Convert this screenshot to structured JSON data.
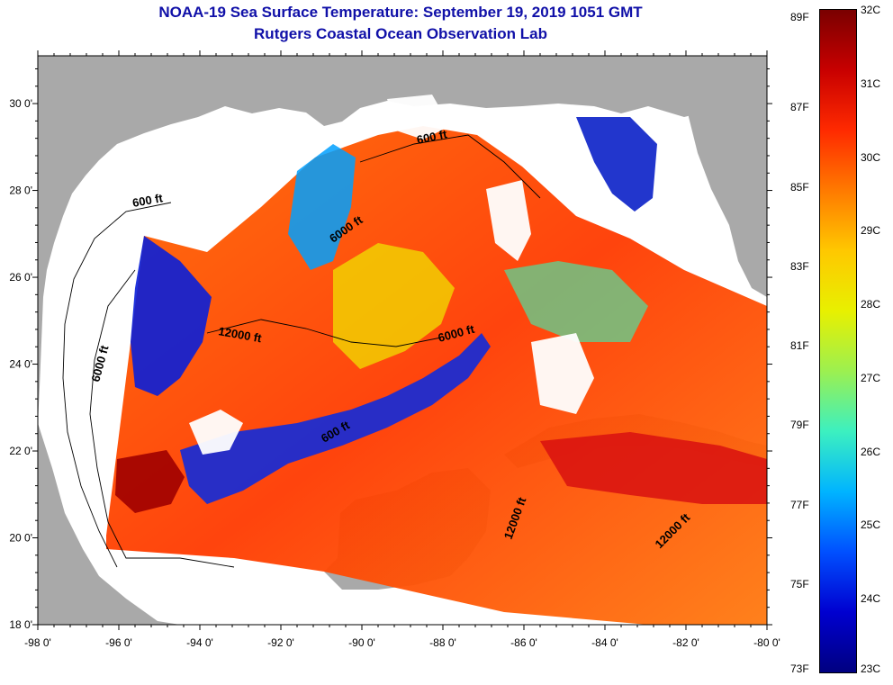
{
  "header": {
    "title": "NOAA-19 Sea Surface Temperature:  September 19, 2019 1051 GMT",
    "subtitle": "Rutgers Coastal Ocean Observation Lab"
  },
  "axes": {
    "lon_labels": [
      "-98 0'",
      "-96 0'",
      "-94 0'",
      "-92 0'",
      "-90 0'",
      "-88 0'",
      "-86 0'",
      "-84 0'",
      "-82 0'",
      "-80 0'"
    ],
    "lat_labels": [
      "18 0'",
      "20 0'",
      "22 0'",
      "24 0'",
      "26 0'",
      "28 0'",
      "30 0'"
    ]
  },
  "contour_labels": [
    {
      "id": "c600-west",
      "text": "600 ft"
    },
    {
      "id": "c600-north",
      "text": "600 ft"
    },
    {
      "id": "c6000-west",
      "text": "6000 ft"
    },
    {
      "id": "c6000-north",
      "text": "6000 ft"
    },
    {
      "id": "c6000-east",
      "text": "6000 ft"
    },
    {
      "id": "c12000-west",
      "text": "12000 ft"
    },
    {
      "id": "c12000-south",
      "text": "12000 ft"
    },
    {
      "id": "c12000-caribbean",
      "text": "12000 ft"
    },
    {
      "id": "c600-yucatan",
      "text": "600 ft"
    }
  ],
  "colorbar": {
    "fahrenheit": [
      "89F",
      "87F",
      "85F",
      "83F",
      "81F",
      "79F",
      "77F",
      "75F",
      "73F"
    ],
    "celsius": [
      "32C",
      "31C",
      "30C",
      "29C",
      "28C",
      "27C",
      "26C",
      "25C",
      "24C",
      "23C"
    ],
    "colors_top_to_bottom": [
      "#7a0000",
      "#c80000",
      "#ff2a00",
      "#ff7a00",
      "#ffc800",
      "#e8f000",
      "#9cf050",
      "#3cf0c0",
      "#00b4ff",
      "#0050ff",
      "#0000d0",
      "#000080"
    ]
  },
  "colors": {
    "land": "#a9a9a9",
    "nodata": "#ffffff",
    "title": "#1010a8"
  }
}
